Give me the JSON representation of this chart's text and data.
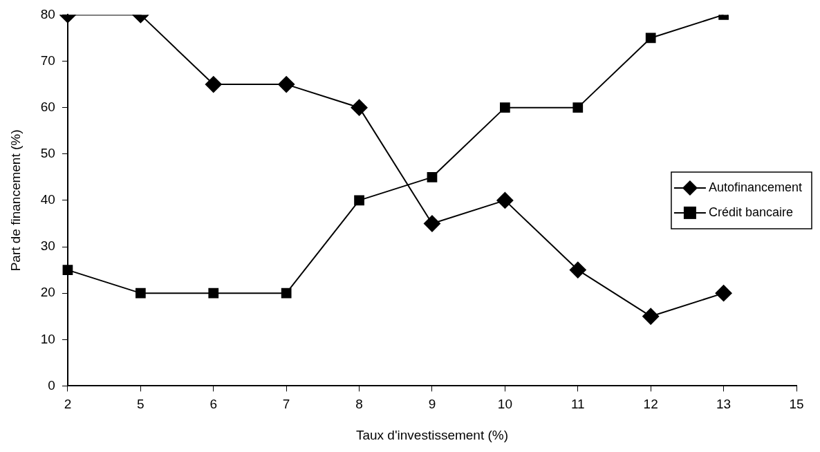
{
  "chart_data": {
    "type": "line",
    "xlabel": "Taux d'investissement (%)",
    "ylabel": "Part de financement (%)",
    "categories": [
      "2",
      "5",
      "6",
      "7",
      "8",
      "9",
      "10",
      "11",
      "12",
      "13",
      "15"
    ],
    "series": [
      {
        "name": "Autofinancement",
        "color": "#000000",
        "marker": "diamond",
        "values": [
          80,
          80,
          65,
          65,
          60,
          35,
          40,
          25,
          15,
          20,
          null
        ]
      },
      {
        "name": "Crédit bancaire",
        "color": "#000000",
        "marker": "square",
        "values": [
          25,
          20,
          20,
          20,
          40,
          45,
          60,
          60,
          75,
          80,
          null
        ]
      }
    ],
    "ylim": [
      0,
      80
    ],
    "yticks": [
      0,
      10,
      20,
      30,
      40,
      50,
      60,
      70,
      80
    ],
    "grid": false,
    "legend": "right",
    "line_style": "solid"
  }
}
